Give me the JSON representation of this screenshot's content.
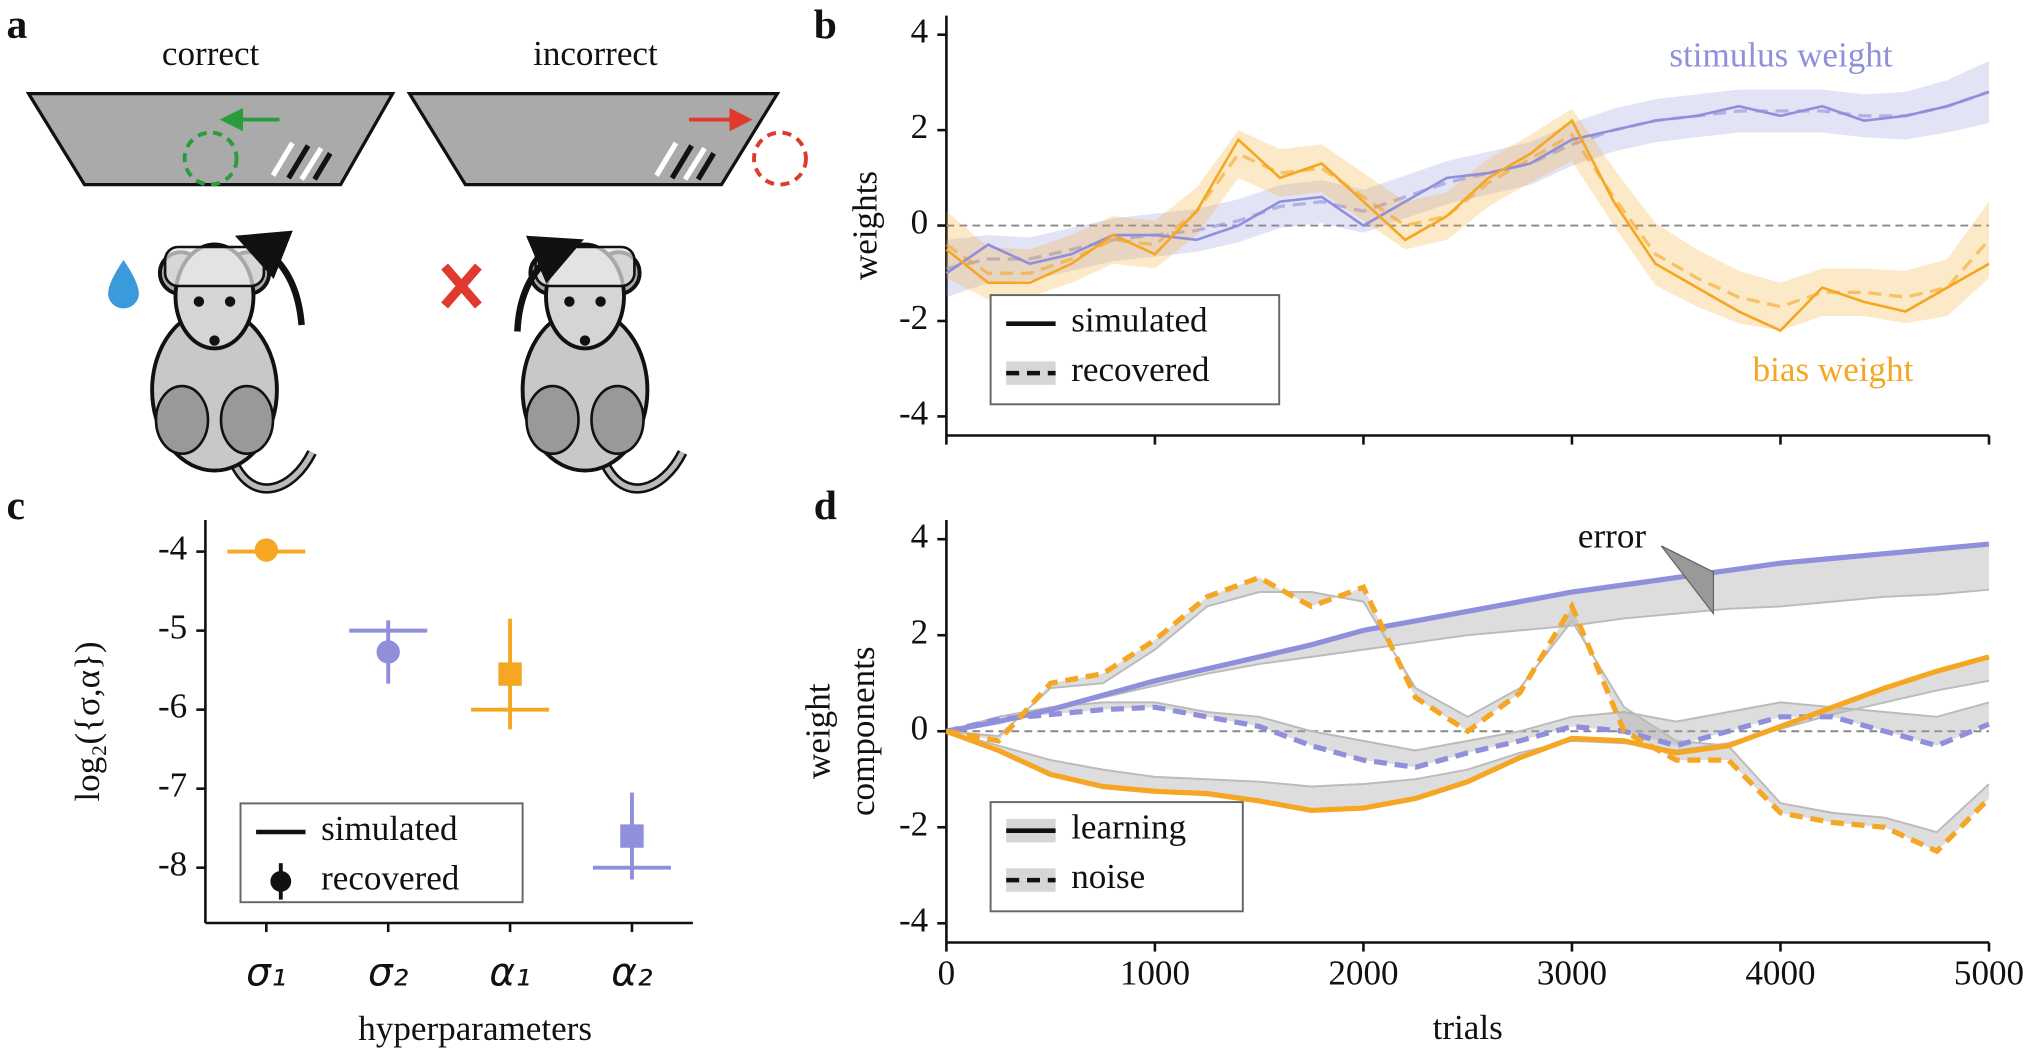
{
  "panel_labels": [
    "a",
    "b",
    "c",
    "d"
  ],
  "diagram": {
    "labels": [
      "correct",
      "incorrect"
    ]
  },
  "chart_data": [
    {
      "type": "line",
      "ylabel": "weights",
      "xlim": [
        0,
        5000
      ],
      "ylim": [
        -4.4,
        4.4
      ],
      "yticks": [
        -4,
        -2,
        0,
        2,
        4
      ],
      "x": [
        0,
        200,
        400,
        600,
        800,
        1000,
        1200,
        1400,
        1600,
        1800,
        2000,
        2200,
        2400,
        2600,
        2800,
        3000,
        3200,
        3400,
        3600,
        3800,
        4000,
        4200,
        4400,
        4600,
        4800,
        5000
      ],
      "series": [
        {
          "name": "stimulus weight",
          "color": "#8f8fdb",
          "values": [
            -1.0,
            -0.4,
            -0.8,
            -0.6,
            -0.2,
            -0.2,
            -0.3,
            0.0,
            0.5,
            0.6,
            0.0,
            0.5,
            1.0,
            1.1,
            1.3,
            1.8,
            2.0,
            2.2,
            2.3,
            2.5,
            2.3,
            2.5,
            2.2,
            2.3,
            2.5,
            2.8
          ],
          "recovered": [
            -0.9,
            -0.7,
            -0.7,
            -0.5,
            -0.3,
            -0.2,
            -0.1,
            0.1,
            0.4,
            0.5,
            0.3,
            0.6,
            0.9,
            1.1,
            1.3,
            1.7,
            2.0,
            2.2,
            2.3,
            2.4,
            2.4,
            2.4,
            2.3,
            2.3,
            2.5,
            2.8
          ],
          "recovered_error": [
            0.6,
            0.5,
            0.45,
            0.45,
            0.45,
            0.45,
            0.45,
            0.45,
            0.45,
            0.45,
            0.45,
            0.45,
            0.45,
            0.45,
            0.45,
            0.45,
            0.45,
            0.45,
            0.45,
            0.45,
            0.45,
            0.45,
            0.45,
            0.5,
            0.55,
            0.65
          ]
        },
        {
          "name": "bias weight",
          "color": "#f5a623",
          "values": [
            -0.5,
            -1.2,
            -1.2,
            -0.8,
            -0.2,
            -0.6,
            0.3,
            1.8,
            1.0,
            1.3,
            0.5,
            -0.3,
            0.2,
            1.0,
            1.5,
            2.2,
            0.5,
            -0.8,
            -1.3,
            -1.8,
            -2.2,
            -1.3,
            -1.6,
            -1.8,
            -1.3,
            -0.8
          ],
          "recovered": [
            -0.4,
            -1.0,
            -1.0,
            -0.7,
            -0.3,
            -0.4,
            0.3,
            1.5,
            1.1,
            1.2,
            0.6,
            0.0,
            0.2,
            0.9,
            1.4,
            1.9,
            0.6,
            -0.6,
            -1.1,
            -1.5,
            -1.7,
            -1.4,
            -1.4,
            -1.5,
            -1.3,
            -0.3
          ],
          "recovered_error": [
            0.7,
            0.55,
            0.5,
            0.5,
            0.5,
            0.5,
            0.5,
            0.5,
            0.5,
            0.5,
            0.5,
            0.5,
            0.5,
            0.5,
            0.5,
            0.55,
            0.6,
            0.65,
            0.6,
            0.55,
            0.5,
            0.5,
            0.5,
            0.55,
            0.6,
            0.8
          ]
        }
      ],
      "legend": [
        {
          "label": "simulated",
          "style": "solid",
          "band": false
        },
        {
          "label": "recovered",
          "style": "dashed",
          "band": true
        }
      ]
    },
    {
      "type": "errorbar",
      "ylabel": "log₂({σ,α})",
      "xlabel": "hyperparameters",
      "categories": [
        "σ₁",
        "σ₂",
        "α₁",
        "α₂"
      ],
      "ylim": [
        -8.7,
        -3.6
      ],
      "yticks": [
        -8,
        -7,
        -6,
        -5,
        -4
      ],
      "simulated": [
        -4,
        -5,
        -6,
        -8
      ],
      "values": [
        -3.98,
        -5.27,
        -5.55,
        -7.6
      ],
      "errors": [
        0.1,
        0.4,
        0.7,
        0.55
      ],
      "colors": [
        "#f5a623",
        "#8f8fdb",
        "#f5a623",
        "#8f8fdb"
      ],
      "markers": [
        "circle",
        "circle",
        "square",
        "square"
      ],
      "legend": [
        {
          "label": "simulated",
          "style": "solid"
        },
        {
          "label": "recovered",
          "style": "marker"
        }
      ]
    },
    {
      "type": "line",
      "ylabel": [
        "weight",
        "components"
      ],
      "xlabel": "trials",
      "annotation": "error",
      "xlim": [
        0,
        5000
      ],
      "ylim": [
        -4.4,
        4.4
      ],
      "yticks": [
        -4,
        -2,
        0,
        2,
        4
      ],
      "xticks": [
        0,
        1000,
        2000,
        3000,
        4000,
        5000
      ],
      "x": [
        0,
        250,
        500,
        750,
        1000,
        1250,
        1500,
        1750,
        2000,
        2250,
        2500,
        2750,
        3000,
        3250,
        3500,
        3750,
        4000,
        4250,
        4500,
        4750,
        5000
      ],
      "series": [
        {
          "color": "#8f8fdb",
          "style": "solid",
          "values": [
            0,
            0.2,
            0.45,
            0.75,
            1.05,
            1.3,
            1.55,
            1.8,
            2.1,
            2.3,
            2.5,
            2.7,
            2.9,
            3.05,
            3.2,
            3.35,
            3.5,
            3.6,
            3.7,
            3.8,
            3.9
          ],
          "true": [
            0,
            0.2,
            0.45,
            0.7,
            0.95,
            1.2,
            1.4,
            1.55,
            1.7,
            1.85,
            2.0,
            2.1,
            2.2,
            2.35,
            2.45,
            2.55,
            2.6,
            2.7,
            2.8,
            2.85,
            2.95
          ]
        },
        {
          "color": "#8f8fdb",
          "style": "dashed",
          "values": [
            0,
            0.25,
            0.35,
            0.45,
            0.5,
            0.3,
            0.1,
            -0.3,
            -0.6,
            -0.75,
            -0.45,
            -0.2,
            0.1,
            0.0,
            -0.3,
            0.0,
            0.3,
            0.3,
            0.0,
            -0.3,
            0.15
          ],
          "true": [
            0,
            0.3,
            0.5,
            0.6,
            0.6,
            0.4,
            0.3,
            0.0,
            -0.2,
            -0.4,
            -0.2,
            0.0,
            0.3,
            0.4,
            0.2,
            0.4,
            0.6,
            0.5,
            0.4,
            0.3,
            0.6
          ]
        },
        {
          "color": "#f5a623",
          "style": "solid",
          "values": [
            0,
            -0.4,
            -0.9,
            -1.15,
            -1.25,
            -1.3,
            -1.45,
            -1.65,
            -1.6,
            -1.4,
            -1.05,
            -0.55,
            -0.15,
            -0.2,
            -0.45,
            -0.3,
            0.1,
            0.5,
            0.9,
            1.25,
            1.55
          ],
          "true": [
            0,
            -0.3,
            -0.6,
            -0.8,
            -0.95,
            -1.0,
            -1.05,
            -1.15,
            -1.1,
            -1.0,
            -0.8,
            -0.45,
            -0.2,
            -0.25,
            -0.4,
            -0.25,
            0.05,
            0.35,
            0.6,
            0.85,
            1.05
          ]
        },
        {
          "color": "#f5a623",
          "style": "dashed",
          "values": [
            0,
            -0.2,
            1.0,
            1.2,
            1.9,
            2.8,
            3.2,
            2.6,
            3.0,
            0.7,
            0.0,
            0.8,
            2.6,
            0.0,
            -0.6,
            -0.6,
            -1.7,
            -1.9,
            -2.0,
            -2.5,
            -1.4
          ],
          "true": [
            0,
            -0.1,
            0.9,
            1.0,
            1.7,
            2.6,
            2.9,
            2.9,
            2.7,
            0.9,
            0.3,
            0.9,
            2.3,
            0.5,
            -0.2,
            -0.3,
            -1.5,
            -1.7,
            -1.8,
            -2.1,
            -1.1
          ]
        }
      ],
      "legend": [
        {
          "label": "learning",
          "style": "solid",
          "band": true
        },
        {
          "label": "noise",
          "style": "dashed",
          "band": true
        }
      ]
    }
  ]
}
